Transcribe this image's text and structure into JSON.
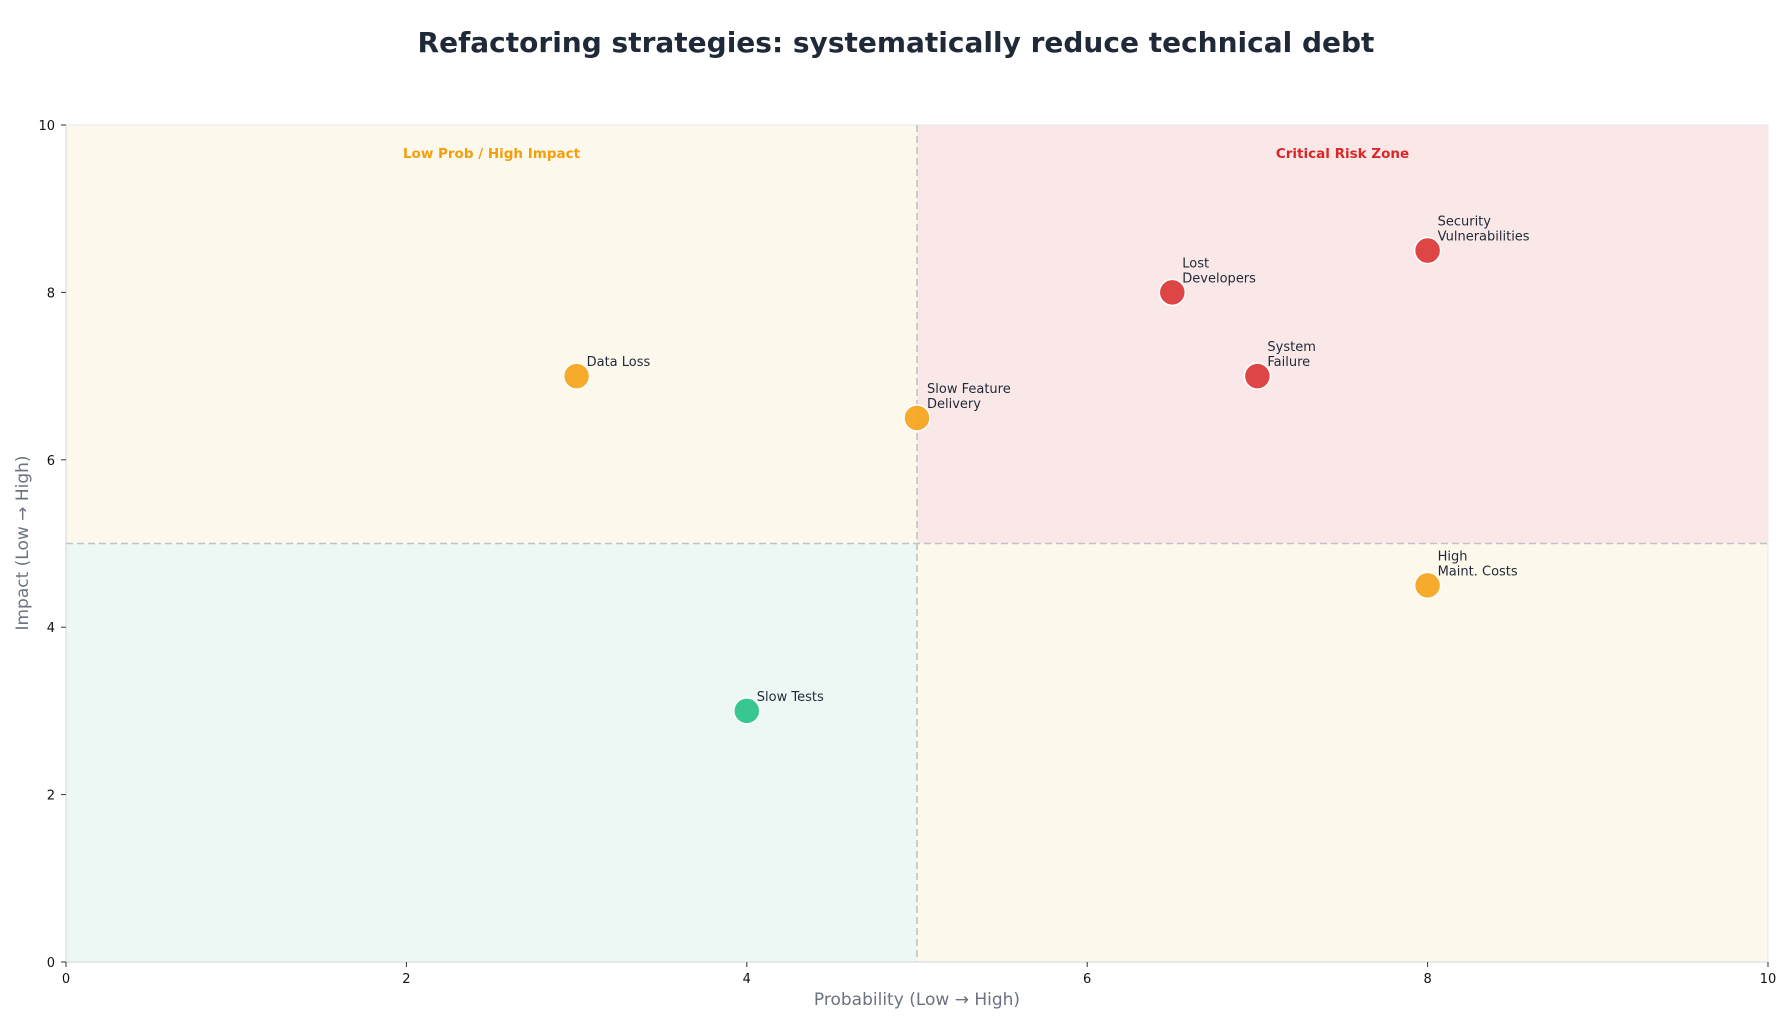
{
  "chart_data": {
    "type": "scatter",
    "title": "Refactoring strategies: systematically reduce technical debt",
    "xlabel": "Probability (Low → High)",
    "ylabel": "Impact (Low → High)",
    "xlim": [
      0,
      10
    ],
    "ylim": [
      0,
      10
    ],
    "xticks": [
      0,
      2,
      4,
      6,
      8,
      10
    ],
    "yticks": [
      0,
      2,
      4,
      6,
      8,
      10
    ],
    "threshold_x": 5,
    "threshold_y": 5,
    "grid": false,
    "quadrants": [
      {
        "id": "low-prob-high-impact",
        "x": [
          0,
          5
        ],
        "y": [
          5,
          10
        ],
        "fill": "#fdf8ec",
        "label": "Low Prob / High Impact",
        "label_color": "#f59e0b"
      },
      {
        "id": "critical",
        "x": [
          5,
          10
        ],
        "y": [
          5,
          10
        ],
        "fill": "#fae8e8",
        "label": "Critical Risk Zone",
        "label_color": "#dc2626"
      },
      {
        "id": "low-low",
        "x": [
          0,
          5
        ],
        "y": [
          0,
          5
        ],
        "fill": "#edf8f4",
        "label": "",
        "label_color": "#10b981"
      },
      {
        "id": "high-prob-low-impact",
        "x": [
          5,
          10
        ],
        "y": [
          0,
          5
        ],
        "fill": "#fdf8ec",
        "label": "",
        "label_color": "#f59e0b"
      }
    ],
    "points": [
      {
        "label": [
          "Data Loss"
        ],
        "x": 3,
        "y": 7,
        "color": "#f5a623"
      },
      {
        "label": [
          "Slow Feature",
          "Delivery"
        ],
        "x": 5,
        "y": 6.5,
        "color": "#f5a623"
      },
      {
        "label": [
          "Lost",
          "Developers"
        ],
        "x": 6.5,
        "y": 8,
        "color": "#dc3c3c"
      },
      {
        "label": [
          "Security",
          "Vulnerabilities"
        ],
        "x": 8,
        "y": 8.5,
        "color": "#dc3c3c"
      },
      {
        "label": [
          "System",
          "Failure"
        ],
        "x": 7,
        "y": 7,
        "color": "#dc3c3c"
      },
      {
        "label": [
          "High",
          "Maint. Costs"
        ],
        "x": 8,
        "y": 4.5,
        "color": "#f5a623"
      },
      {
        "label": [
          "Slow Tests"
        ],
        "x": 4,
        "y": 3,
        "color": "#2ec38b"
      }
    ]
  }
}
